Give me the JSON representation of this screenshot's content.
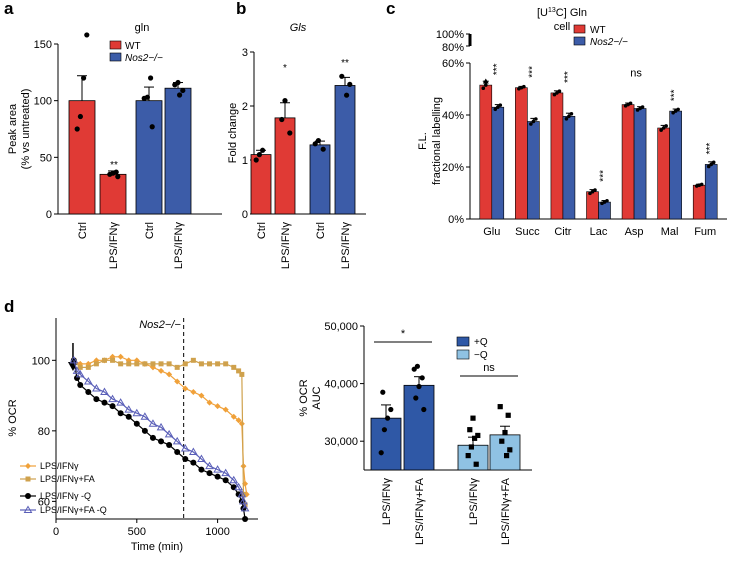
{
  "colors": {
    "wt": "#e03a35",
    "nos2": "#3c5ca8",
    "plusQ": "#2f58a6",
    "minusQ": "#8fc2e3",
    "orange": "#f0a13a",
    "tan": "#cfa14c",
    "black": "#000000",
    "purple": "#5a5fb8"
  },
  "panel_labels": {
    "a": "a",
    "b": "b",
    "c": "c",
    "d": "d"
  },
  "chart_data": [
    {
      "id": "a",
      "type": "bar",
      "title": "gln",
      "ylabel_line1": "Peak area",
      "ylabel_line2": "(% vs untreated)",
      "ylim": [
        0,
        150
      ],
      "yticks": [
        "0",
        "50",
        "100",
        "150"
      ],
      "ytick_values": [
        0,
        50,
        100,
        150
      ],
      "categories": [
        "Ctrl",
        "LPS/IFNγ",
        "Ctrl",
        "LPS/IFNγ"
      ],
      "groups": [
        "WT",
        "WT",
        "Nos2",
        "Nos2"
      ],
      "values": [
        100,
        35,
        100,
        111
      ],
      "errors": [
        22,
        3,
        12,
        5
      ],
      "points": [
        [
          75,
          86,
          120,
          158
        ],
        [
          33,
          35,
          36,
          37
        ],
        [
          77,
          102,
          103,
          120
        ],
        [
          105,
          109,
          114,
          116
        ]
      ],
      "annotations": [
        "",
        "**",
        "",
        ""
      ],
      "legend": [
        "WT",
        "Nos2−/−"
      ]
    },
    {
      "id": "b",
      "type": "bar",
      "title": "Gls",
      "ylabel": "Fold change",
      "ylim": [
        0,
        3
      ],
      "yticks": [
        "0",
        "1",
        "2",
        "3"
      ],
      "ytick_values": [
        0,
        1,
        2,
        3
      ],
      "categories": [
        "Ctrl",
        "LPS/IFNγ",
        "Ctrl",
        "LPS/IFNγ"
      ],
      "groups": [
        "WT",
        "WT",
        "Nos2",
        "Nos2"
      ],
      "values": [
        1.1,
        1.78,
        1.28,
        2.38
      ],
      "errors": [
        0.08,
        0.28,
        0.07,
        0.15
      ],
      "points": [
        [
          1.0,
          1.1,
          1.18
        ],
        [
          1.5,
          1.75,
          2.1
        ],
        [
          1.2,
          1.3,
          1.36
        ],
        [
          2.2,
          2.4,
          2.55
        ]
      ],
      "annotations": [
        "",
        "*",
        "",
        "**"
      ]
    },
    {
      "id": "c",
      "type": "bar",
      "title": "[U13C] Gln",
      "title_pre": "[U",
      "title_sup": "13",
      "title_post": "C] Gln",
      "subtitle": "cell",
      "ylabel_line1": "F.L.",
      "ylabel_line2": "fractional labelling",
      "yticks": [
        "0%",
        "20%",
        "40%",
        "60%",
        "80%",
        "100%"
      ],
      "ytick_values": [
        0,
        20,
        40,
        60,
        80,
        100
      ],
      "categories": [
        "Glu",
        "Succ",
        "Citr",
        "Lac",
        "Asp",
        "Mal",
        "Fum"
      ],
      "series": [
        {
          "name": "WT",
          "values": [
            51.5,
            50.5,
            48.5,
            10.5,
            44,
            35,
            13
          ],
          "errors": [
            1.5,
            0.5,
            0.8,
            0.8,
            0.6,
            1,
            0.4
          ]
        },
        {
          "name": "Nos2−/−",
          "values": [
            43,
            37.5,
            39.5,
            6.5,
            42.5,
            41.5,
            21
          ],
          "errors": [
            1,
            1.2,
            1.2,
            0.6,
            0.7,
            0.8,
            1
          ]
        }
      ],
      "annotations": [
        "***",
        "***",
        "***",
        "***",
        "ns",
        "***",
        "***"
      ],
      "legend": [
        "WT",
        "Nos2−/−"
      ]
    },
    {
      "id": "d-left",
      "type": "line",
      "title": "Nos2−/−",
      "xlabel": "Time (min)",
      "ylabel": "% OCR",
      "xlim": [
        0,
        1250
      ],
      "ylim": [
        55,
        112
      ],
      "xticks": [
        "0",
        "500",
        "1000"
      ],
      "xtick_values": [
        0,
        500,
        1000
      ],
      "yticks": [
        "60",
        "80",
        "100"
      ],
      "ytick_values": [
        60,
        80,
        100
      ],
      "vline_x": 790,
      "arrow_x": 105,
      "series": [
        {
          "name": "LPS/IFNγ",
          "color": "#f0a13a",
          "marker": "diamond",
          "x": [
            110,
            150,
            200,
            250,
            300,
            350,
            400,
            450,
            500,
            550,
            600,
            650,
            700,
            750,
            800,
            850,
            900,
            950,
            1000,
            1050,
            1100,
            1130,
            1150,
            1160,
            1170,
            1180
          ],
          "y": [
            100,
            99,
            99,
            100,
            100,
            101,
            101,
            100,
            100,
            99,
            98,
            97,
            96,
            94,
            92,
            91,
            90,
            88,
            87,
            86,
            84,
            83,
            82,
            70,
            65,
            62
          ]
        },
        {
          "name": "LPS/IFNγ+FA",
          "color": "#cfa14c",
          "marker": "square",
          "x": [
            110,
            150,
            200,
            250,
            300,
            350,
            400,
            450,
            500,
            550,
            600,
            650,
            700,
            750,
            800,
            850,
            900,
            950,
            1000,
            1050,
            1100,
            1130,
            1150,
            1160,
            1170
          ],
          "y": [
            100,
            98,
            98,
            99,
            100,
            100,
            99,
            99,
            99,
            99,
            99,
            99,
            99,
            98,
            99,
            100,
            99,
            99,
            99,
            99,
            98,
            97,
            96,
            62,
            59
          ]
        },
        {
          "name": "LPS/IFNγ -Q",
          "color": "#000000",
          "marker": "circle",
          "x": [
            110,
            130,
            150,
            200,
            250,
            300,
            350,
            400,
            450,
            500,
            550,
            600,
            650,
            700,
            750,
            800,
            850,
            900,
            950,
            1000,
            1050,
            1100,
            1130,
            1150,
            1160,
            1170
          ],
          "y": [
            100,
            95,
            93,
            91,
            89,
            88,
            87,
            85,
            84,
            82,
            80,
            78,
            77,
            76,
            74,
            72,
            71,
            69,
            68,
            67,
            66,
            64,
            62,
            60,
            58,
            55
          ]
        },
        {
          "name": "LPS/IFNγ+FA -Q",
          "color": "#5a5fb8",
          "marker": "triangle",
          "x": [
            110,
            130,
            150,
            200,
            250,
            300,
            350,
            400,
            450,
            500,
            550,
            600,
            650,
            700,
            750,
            800,
            850,
            900,
            950,
            1000,
            1050,
            1100,
            1130,
            1150,
            1160,
            1170
          ],
          "y": [
            100,
            97,
            96,
            94,
            92,
            91,
            89,
            88,
            86,
            85,
            84,
            82,
            81,
            79,
            77,
            75,
            74,
            72,
            70,
            69,
            68,
            66,
            64,
            62,
            60,
            58
          ]
        }
      ]
    },
    {
      "id": "d-right",
      "type": "bar",
      "ylabel_line1": "% OCR",
      "ylabel_line2": "AUC",
      "ylim": [
        25000,
        50000
      ],
      "yticks": [
        "30,000",
        "40,000",
        "50,000"
      ],
      "ytick_values": [
        30000,
        40000,
        50000
      ],
      "categories": [
        "LPS/IFNγ",
        "LPS/IFNγ+FA",
        "LPS/IFNγ",
        "LPS/IFNγ+FA"
      ],
      "groups": [
        "+Q",
        "+Q",
        "−Q",
        "−Q"
      ],
      "values": [
        34000,
        39700,
        29300,
        31100
      ],
      "errors": [
        2300,
        1500,
        1400,
        1500
      ],
      "points": [
        [
          28000,
          32000,
          34000,
          35500,
          38500
        ],
        [
          35500,
          37500,
          39500,
          41000,
          42500,
          43000
        ],
        [
          26000,
          27500,
          29000,
          30500,
          31000,
          32000,
          34000
        ],
        [
          27500,
          28500,
          30000,
          31500,
          34500,
          36000
        ]
      ],
      "brackets": [
        {
          "label": "*"
        },
        {
          "label": "ns"
        }
      ],
      "legend": [
        "+Q",
        "−Q"
      ]
    }
  ]
}
